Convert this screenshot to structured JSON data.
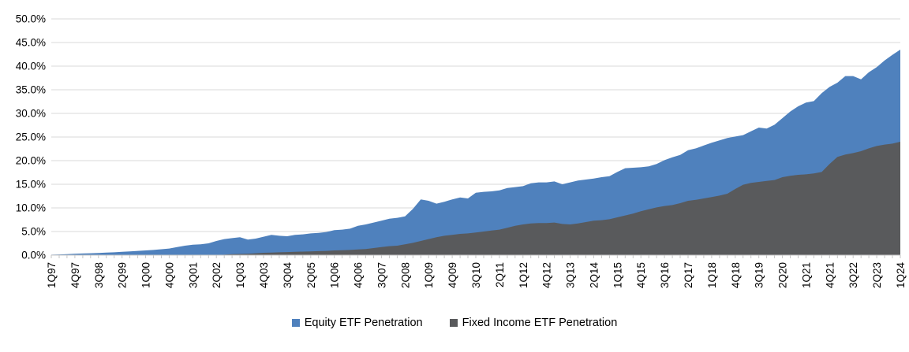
{
  "chart_data": {
    "type": "area",
    "title": "",
    "xlabel": "",
    "ylabel": "",
    "ylim": [
      0,
      50
    ],
    "y_tick_step": 5,
    "y_tick_labels": [
      "0.0%",
      "5.0%",
      "10.0%",
      "15.0%",
      "20.0%",
      "25.0%",
      "30.0%",
      "35.0%",
      "40.0%",
      "45.0%",
      "50.0%"
    ],
    "grid": true,
    "legend_position": "bottom",
    "areas_overlap": true,
    "x_label_every_n_points": 3,
    "x_start": "1Q97",
    "x_end": "1Q24",
    "x_tick_labels": [
      "1Q97",
      "4Q97",
      "3Q98",
      "2Q99",
      "1Q00",
      "4Q00",
      "3Q01",
      "2Q02",
      "1Q03",
      "4Q03",
      "3Q04",
      "2Q05",
      "1Q06",
      "4Q06",
      "3Q07",
      "2Q08",
      "1Q09",
      "4Q09",
      "3Q10",
      "2Q11",
      "1Q12",
      "4Q12",
      "3Q13",
      "2Q14",
      "1Q15",
      "4Q15",
      "3Q16",
      "2Q17",
      "1Q18",
      "4Q18",
      "3Q19",
      "2Q20",
      "1Q21",
      "4Q21",
      "3Q22",
      "2Q23",
      "1Q24"
    ],
    "series": [
      {
        "name": "Equity ETF Penetration",
        "color": "#4F81BD",
        "values": [
          0.1,
          0.15,
          0.2,
          0.3,
          0.35,
          0.4,
          0.45,
          0.55,
          0.6,
          0.7,
          0.8,
          0.9,
          1.0,
          1.1,
          1.25,
          1.4,
          1.7,
          2.0,
          2.2,
          2.3,
          2.5,
          3.0,
          3.4,
          3.6,
          3.8,
          3.3,
          3.5,
          3.9,
          4.3,
          4.1,
          4.0,
          4.3,
          4.4,
          4.6,
          4.7,
          4.9,
          5.3,
          5.4,
          5.6,
          6.2,
          6.5,
          6.9,
          7.3,
          7.7,
          7.9,
          8.2,
          9.8,
          11.8,
          11.5,
          10.9,
          11.3,
          11.8,
          12.2,
          12.0,
          13.2,
          13.4,
          13.5,
          13.7,
          14.2,
          14.4,
          14.6,
          15.2,
          15.4,
          15.4,
          15.6,
          15.0,
          15.4,
          15.8,
          16.0,
          16.2,
          16.5,
          16.7,
          17.6,
          18.4,
          18.5,
          18.6,
          18.8,
          19.3,
          20.1,
          20.7,
          21.2,
          22.2,
          22.6,
          23.2,
          23.8,
          24.3,
          24.8,
          25.1,
          25.4,
          26.2,
          27.0,
          26.8,
          27.6,
          29.0,
          30.4,
          31.5,
          32.3,
          32.6,
          34.3,
          35.6,
          36.5,
          37.9,
          37.9,
          37.2,
          38.7,
          39.8,
          41.2,
          42.4,
          43.5
        ]
      },
      {
        "name": "Fixed Income ETF Penetration",
        "color": "#595A5C",
        "values": [
          0,
          0,
          0,
          0,
          0,
          0,
          0,
          0,
          0,
          0,
          0,
          0,
          0,
          0,
          0,
          0,
          0,
          0,
          0,
          0,
          0,
          0.05,
          0.1,
          0.2,
          0.25,
          0.3,
          0.4,
          0.5,
          0.55,
          0.6,
          0.65,
          0.7,
          0.75,
          0.8,
          0.85,
          0.9,
          1.0,
          1.05,
          1.1,
          1.2,
          1.3,
          1.5,
          1.7,
          1.9,
          2.0,
          2.3,
          2.6,
          3.0,
          3.4,
          3.8,
          4.1,
          4.3,
          4.5,
          4.6,
          4.8,
          5.0,
          5.2,
          5.4,
          5.8,
          6.2,
          6.5,
          6.7,
          6.8,
          6.8,
          6.9,
          6.6,
          6.5,
          6.7,
          7.0,
          7.3,
          7.4,
          7.6,
          8.0,
          8.4,
          8.8,
          9.3,
          9.7,
          10.1,
          10.4,
          10.6,
          11.0,
          11.5,
          11.7,
          12.0,
          12.3,
          12.6,
          13.0,
          14.0,
          14.9,
          15.3,
          15.5,
          15.7,
          15.9,
          16.5,
          16.8,
          17.0,
          17.1,
          17.3,
          17.6,
          19.3,
          20.8,
          21.3,
          21.6,
          22.0,
          22.6,
          23.1,
          23.4,
          23.6,
          24.0
        ]
      }
    ],
    "colors": {
      "grid": "#D9D9D9",
      "axis": "#C6C6C6",
      "text": "#000000",
      "background": "#FFFFFF"
    }
  }
}
